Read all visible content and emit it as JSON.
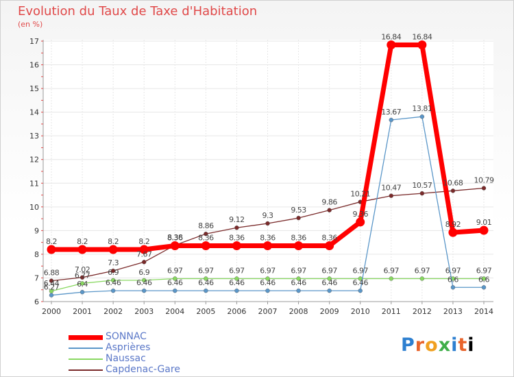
{
  "chart_data": {
    "type": "line",
    "title": "Evolution du Taux de Taxe d'Habitation",
    "subtitle": "(en %)",
    "categories": [
      "2000",
      "2001",
      "2002",
      "2003",
      "2004",
      "2005",
      "2006",
      "2007",
      "2008",
      "2009",
      "2010",
      "2011",
      "2012",
      "2013",
      "2014"
    ],
    "ylim": [
      6,
      17
    ],
    "yticks": [
      "6",
      "7",
      "8",
      "9",
      "10",
      "11",
      "12",
      "13",
      "14",
      "15",
      "16",
      "17"
    ],
    "grid": true,
    "legend_placement": "bottom-left",
    "series": [
      {
        "name": "SONNAC",
        "color": "#ff0000",
        "width": 7,
        "values": [
          8.2,
          8.2,
          8.2,
          8.2,
          8.36,
          8.36,
          8.36,
          8.36,
          8.36,
          8.36,
          9.36,
          16.84,
          16.84,
          8.92,
          9.01
        ],
        "labels": [
          "8.2",
          "8.2",
          "8.2",
          "8.2",
          "8.36",
          "8.36",
          "8.36",
          "8.36",
          "8.36",
          "8.36",
          "9.36",
          "16.84",
          "16.84",
          "8.92",
          "9.01"
        ]
      },
      {
        "name": "Asprières",
        "color": "#5a96c8",
        "width": 1.3,
        "values": [
          6.27,
          6.4,
          6.46,
          6.46,
          6.46,
          6.46,
          6.46,
          6.46,
          6.46,
          6.46,
          6.46,
          13.67,
          13.81,
          6.6,
          6.6
        ],
        "labels": [
          "6.27",
          "6.4",
          "6.46",
          "6.46",
          "6.46",
          "6.46",
          "6.46",
          "6.46",
          "6.46",
          "6.46",
          "6.46",
          "13.67",
          "13.81",
          "6.6",
          "6.6"
        ]
      },
      {
        "name": "Naussac",
        "color": "#88d860",
        "width": 1.3,
        "values": [
          6.44,
          6.77,
          6.9,
          6.9,
          6.97,
          6.97,
          6.97,
          6.97,
          6.97,
          6.97,
          6.97,
          6.97,
          6.97,
          6.97,
          6.97
        ],
        "labels": [
          "6.44",
          "6.77",
          "6.9",
          "6.9",
          "6.97",
          "6.97",
          "6.97",
          "6.97",
          "6.97",
          "6.97",
          "6.97",
          "6.97",
          "6.97",
          "6.97",
          "6.97"
        ]
      },
      {
        "name": "Capdenac-Gare",
        "color": "#7a2a2a",
        "width": 1.3,
        "values": [
          6.88,
          7.02,
          7.3,
          7.67,
          8.38,
          8.86,
          9.12,
          9.3,
          9.53,
          9.86,
          10.21,
          10.47,
          10.57,
          10.68,
          10.79
        ],
        "labels": [
          "6.88",
          "7.02",
          "7.3",
          "7.67",
          "8.38",
          "8.86",
          "9.12",
          "9.3",
          "9.53",
          "9.86",
          "10.21",
          "10.47",
          "10.57",
          "10.68",
          "10.79"
        ]
      }
    ]
  },
  "legend": {
    "items": [
      {
        "label": "SONNAC",
        "color": "#ff0000"
      },
      {
        "label": "Asprières",
        "color": "#5a96c8"
      },
      {
        "label": "Naussac",
        "color": "#88d860"
      },
      {
        "label": "Capdenac-Gare",
        "color": "#7a2a2a"
      }
    ]
  },
  "logo": {
    "letters": [
      "P",
      "r",
      "o",
      "x",
      "i",
      "t",
      "i"
    ]
  }
}
